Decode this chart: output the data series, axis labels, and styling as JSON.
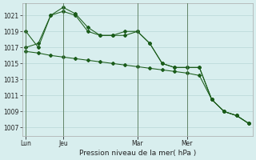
{
  "xlabel": "Pression niveau de la mer( hPa )",
  "bg_color": "#d8eeee",
  "grid_color": "#b8d8d8",
  "line_color": "#1a5c1a",
  "ylim": [
    1006.0,
    1022.5
  ],
  "yticks": [
    1007,
    1009,
    1011,
    1013,
    1015,
    1017,
    1019,
    1021
  ],
  "day_labels": [
    "Lun",
    "Jeu",
    "Mar",
    "Mer"
  ],
  "day_positions": [
    0,
    3,
    9,
    13
  ],
  "n_points": 19,
  "line1_x": [
    0,
    1,
    2,
    3,
    4,
    5,
    6,
    7,
    8,
    9,
    10,
    11,
    12,
    13,
    14,
    15,
    16,
    17,
    18
  ],
  "line1": [
    1019,
    1017,
    1021,
    1021.5,
    1021,
    1019,
    1018.5,
    1018.5,
    1019,
    1019,
    1017.5,
    1015,
    1014.5,
    1014.5,
    1014.5,
    1010.5,
    1009,
    1008.5,
    1007.5
  ],
  "line2_x": [
    0,
    1,
    2,
    3,
    4,
    5,
    6,
    7,
    8,
    9,
    10,
    11,
    12,
    13,
    14,
    15,
    16,
    17,
    18
  ],
  "line2": [
    1017,
    1017.5,
    1021,
    1022,
    1021.2,
    1019.5,
    1018.5,
    1018.5,
    1018.5,
    1019,
    1017.5,
    1015,
    1014.5,
    1014.5,
    1014.5,
    1010.5,
    1009,
    1008.5,
    1007.5
  ],
  "line3_x": [
    0,
    1,
    2,
    3,
    4,
    5,
    6,
    7,
    8,
    9,
    10,
    11,
    12,
    13,
    14,
    15,
    16,
    17,
    18
  ],
  "line3": [
    1016.5,
    1016.3,
    1016.0,
    1015.8,
    1015.6,
    1015.4,
    1015.2,
    1015.0,
    1014.8,
    1014.6,
    1014.4,
    1014.2,
    1014.0,
    1013.8,
    1013.5,
    1010.5,
    1009,
    1008.5,
    1007.5
  ],
  "vline_color": "#557755",
  "vline_positions": [
    0,
    3,
    9,
    13
  ],
  "xlabel_fontsize": 6.5,
  "tick_fontsize": 5.5
}
